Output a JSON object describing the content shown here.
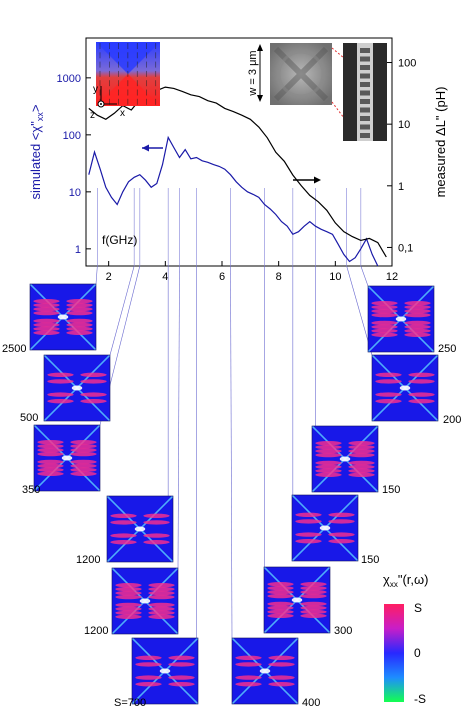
{
  "chart_data": {
    "type": "line",
    "xlabel": "f(GHz)",
    "x_ticks": [
      "2",
      "4",
      "6",
      "8",
      "10",
      "12"
    ],
    "xlim": [
      1.2,
      12
    ],
    "left_axis": {
      "label_prefix": "simulated <χ\"",
      "label_sub": "xx",
      "label_suffix": ">",
      "scale": "log",
      "ylim": [
        0.5,
        5000
      ],
      "ticks": [
        "1",
        "10",
        "100",
        "1000"
      ]
    },
    "right_axis": {
      "label": "measured ΔL\" (pH)",
      "scale": "log",
      "ylim": [
        0.05,
        250
      ],
      "ticks": [
        "0,1",
        "1",
        "10",
        "100"
      ]
    },
    "series": [
      {
        "color": "#1a1aa8",
        "axis": "left",
        "x": [
          1.3,
          1.5,
          1.7,
          1.9,
          2.1,
          2.3,
          2.5,
          2.7,
          2.9,
          3.1,
          3.3,
          3.5,
          3.7,
          3.9,
          4.1,
          4.3,
          4.5,
          4.7,
          4.9,
          5.1,
          5.3,
          5.5,
          5.7,
          5.9,
          6.1,
          6.3,
          6.5,
          6.7,
          6.9,
          7.1,
          7.3,
          7.5,
          7.7,
          7.9,
          8.1,
          8.3,
          8.5,
          8.7,
          8.9,
          9.1,
          9.3,
          9.5,
          9.7,
          9.9,
          10.1,
          10.3,
          10.5,
          10.7,
          10.9,
          11.1,
          11.3,
          11.5
        ],
        "y": [
          20,
          50,
          25,
          12,
          8,
          6,
          10,
          15,
          18,
          20,
          16,
          12,
          14,
          30,
          90,
          60,
          40,
          55,
          38,
          40,
          35,
          33,
          30,
          28,
          25,
          20,
          15,
          12,
          10,
          9,
          8,
          6,
          5,
          4,
          3,
          2.5,
          1.8,
          2.0,
          2.5,
          3.0,
          2.5,
          2.2,
          2.0,
          1.8,
          1.2,
          0.8,
          0.6,
          0.7,
          1.0,
          1.5,
          0.8,
          0.5
        ]
      },
      {
        "color": "#000000",
        "axis": "right",
        "x": [
          1.3,
          1.6,
          1.9,
          2.2,
          2.5,
          2.8,
          3.1,
          3.4,
          3.7,
          4.0,
          4.3,
          4.6,
          4.9,
          5.2,
          5.5,
          5.8,
          6.1,
          6.4,
          6.7,
          7.0,
          7.3,
          7.6,
          7.9,
          8.2,
          8.5,
          8.8,
          9.1,
          9.4,
          9.7,
          10.0,
          10.3,
          10.6,
          10.9,
          11.2,
          11.5,
          11.8
        ],
        "y": [
          18,
          14,
          12,
          15,
          20,
          17,
          25,
          30,
          35,
          40,
          38,
          34,
          30,
          28,
          24,
          22,
          18,
          16,
          14,
          12,
          9,
          6,
          3.5,
          2.5,
          1.5,
          1.0,
          0.7,
          0.55,
          0.4,
          0.25,
          0.18,
          0.15,
          0.13,
          0.14,
          0.12,
          0.07
        ]
      }
    ]
  },
  "inset": {
    "width_label": "w = 3 μm",
    "axes": {
      "y": "y",
      "x": "x",
      "z": "z"
    }
  },
  "maps": {
    "left": [
      {
        "label": "2500",
        "freq": 1.6
      },
      {
        "label": "500",
        "freq": 2.9
      },
      {
        "label": "350",
        "freq": 3.1
      },
      {
        "label": "1200",
        "freq": 4.1
      },
      {
        "label": "1200",
        "freq": 4.5
      },
      {
        "label": "S=700",
        "freq": 5.1
      }
    ],
    "right": [
      {
        "label": "250",
        "freq": 10.9
      },
      {
        "label": "200",
        "freq": 10.4
      },
      {
        "label": "150",
        "freq": 9.3
      },
      {
        "label": "150",
        "freq": 8.5
      },
      {
        "label": "300",
        "freq": 7.5
      },
      {
        "label": "400",
        "freq": 6.3
      }
    ]
  },
  "colorbar": {
    "title": "χ",
    "title_sub": "xx",
    "title_suffix": "\"(r,ω)",
    "top": "S",
    "mid": "0",
    "bottom": "-S"
  }
}
